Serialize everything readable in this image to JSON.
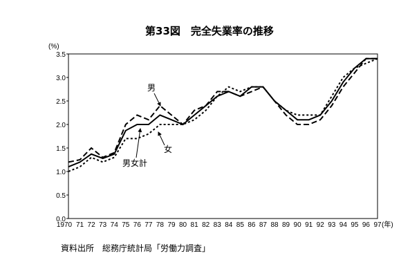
{
  "chart_data": {
    "type": "line",
    "title": "第33図　完全失業率の推移",
    "ylabel": "(%)",
    "xlabel": "(年)",
    "ylim": [
      0,
      3.5
    ],
    "yticks": [
      "0.0",
      "0.5",
      "1.0",
      "1.5",
      "2.0",
      "2.5",
      "3.0",
      "3.5"
    ],
    "categories": [
      "1970",
      "71",
      "72",
      "73",
      "74",
      "75",
      "76",
      "77",
      "78",
      "79",
      "80",
      "81",
      "82",
      "83",
      "84",
      "85",
      "86",
      "87",
      "88",
      "89",
      "90",
      "91",
      "92",
      "93",
      "94",
      "95",
      "96",
      "97"
    ],
    "grid": false,
    "series": [
      {
        "name": "男女計",
        "style": "solid",
        "values": [
          1.1,
          1.2,
          1.37,
          1.28,
          1.37,
          1.87,
          2.0,
          2.0,
          2.2,
          2.1,
          2.0,
          2.2,
          2.4,
          2.6,
          2.7,
          2.6,
          2.8,
          2.8,
          2.5,
          2.3,
          2.1,
          2.1,
          2.2,
          2.5,
          2.9,
          3.2,
          3.4,
          3.4
        ]
      },
      {
        "name": "男",
        "style": "dashed",
        "values": [
          1.2,
          1.25,
          1.5,
          1.3,
          1.4,
          2.0,
          2.2,
          2.1,
          2.4,
          2.2,
          2.0,
          2.3,
          2.4,
          2.7,
          2.7,
          2.6,
          2.7,
          2.8,
          2.5,
          2.2,
          2.0,
          2.0,
          2.1,
          2.4,
          2.8,
          3.1,
          3.4,
          3.4
        ]
      },
      {
        "name": "女",
        "style": "dotted",
        "values": [
          1.0,
          1.1,
          1.3,
          1.2,
          1.3,
          1.7,
          1.7,
          1.8,
          2.0,
          2.0,
          2.0,
          2.1,
          2.3,
          2.6,
          2.8,
          2.7,
          2.8,
          2.8,
          2.5,
          2.3,
          2.2,
          2.2,
          2.2,
          2.6,
          3.0,
          3.2,
          3.3,
          3.4
        ]
      }
    ],
    "source": "資料出所　総務庁統計局「労働力調査」"
  }
}
